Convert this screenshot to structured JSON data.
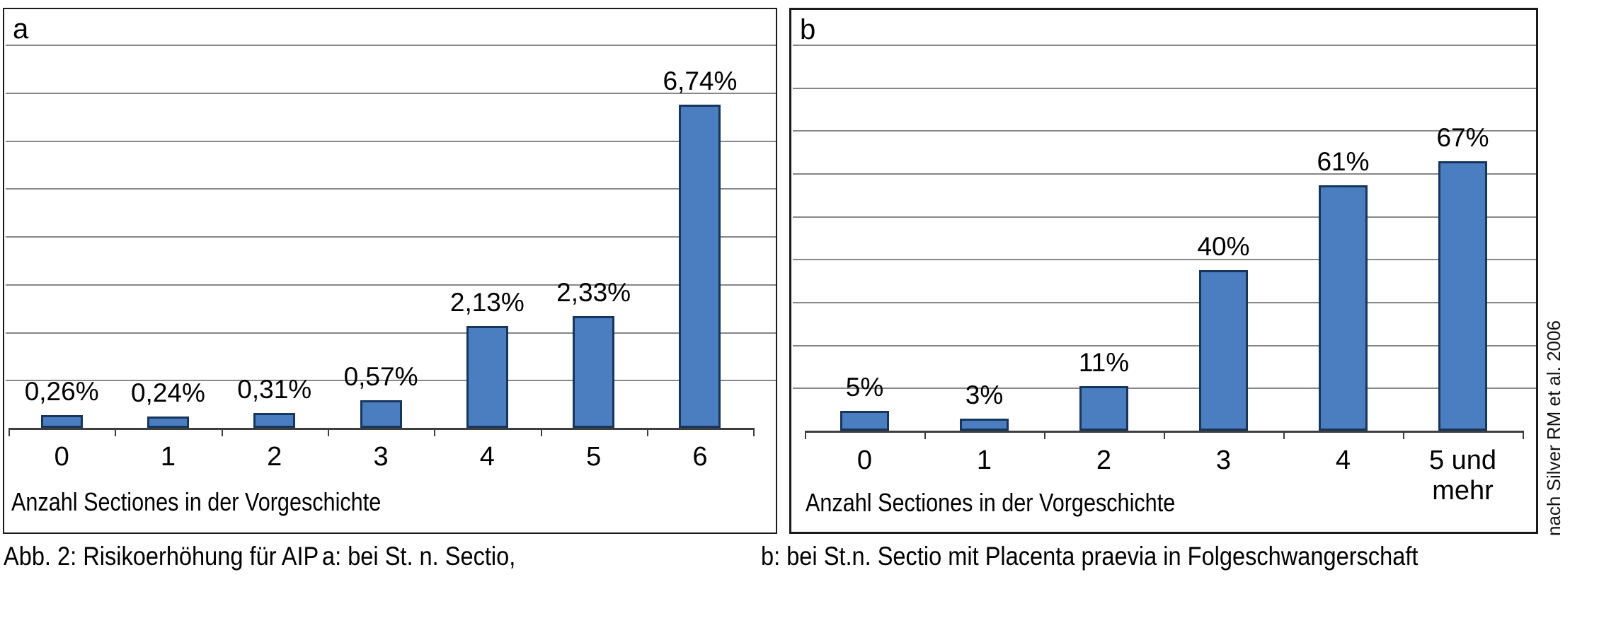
{
  "figure": {
    "caption_main": "Abb. 2: Risikoerhöhung für AIP",
    "caption_a": "a: bei St. n. Sectio,",
    "caption_b": "b: bei St.n. Sectio mit Placenta praevia in Folgeschwangerschaft",
    "source_note": "nach Silver RM et al. 2006"
  },
  "colors": {
    "bar_fill": "#4a7ec1",
    "bar_border": "#16365c",
    "gridline": "#878787",
    "axis": "#3e3e3e",
    "panel_border": "#1a1a1a"
  },
  "chart_data": [
    {
      "id": "a",
      "panel_label": "a",
      "type": "bar",
      "title": "",
      "xlabel": "Anzahl Sectiones in der Vorgeschichte",
      "ylabel": "",
      "categories": [
        "0",
        "1",
        "2",
        "3",
        "4",
        "5",
        "6"
      ],
      "values": [
        0.26,
        0.24,
        0.31,
        0.57,
        2.13,
        2.33,
        6.74
      ],
      "labels": [
        "0,26%",
        "0,24%",
        "0,31%",
        "0,57%",
        "2,13%",
        "2,33%",
        "6,74%"
      ],
      "unit": "%",
      "ylim": [
        0,
        8
      ],
      "ymax": 8,
      "n_gridlines": 8,
      "grid": true,
      "legend": false
    },
    {
      "id": "b",
      "panel_label": "b",
      "type": "bar",
      "title": "",
      "xlabel": "Anzahl Sectiones in der Vorgeschichte",
      "ylabel": "",
      "categories": [
        "0",
        "1",
        "2",
        "3",
        "4",
        "5 und mehr"
      ],
      "values": [
        5,
        3,
        11,
        40,
        61,
        67
      ],
      "labels": [
        "5%",
        "3%",
        "11%",
        "40%",
        "61%",
        "67%"
      ],
      "unit": "%",
      "ylim": [
        0,
        96
      ],
      "ymax": 96,
      "n_gridlines": 9,
      "grid": true,
      "legend": false
    }
  ]
}
